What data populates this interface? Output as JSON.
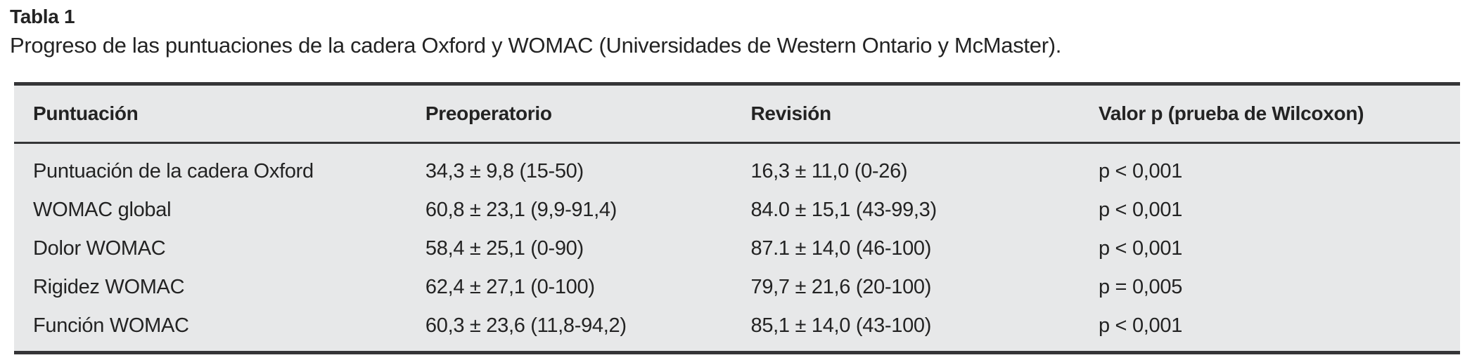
{
  "caption": {
    "label": "Tabla 1",
    "description": "Progreso de las puntuaciones de la cadera Oxford y WOMAC (Universidades de Western Ontario y McMaster)."
  },
  "table": {
    "headers": [
      "Puntuación",
      "Preoperatorio",
      "Revisión",
      "Valor p (prueba de Wilcoxon)"
    ],
    "rows": [
      [
        "Puntuación de la cadera Oxford",
        "34,3 ± 9,8 (15-50)",
        "16,3 ± 11,0 (0-26)",
        "p < 0,001"
      ],
      [
        "WOMAC global",
        "60,8 ± 23,1 (9,9-91,4)",
        "84.0 ± 15,1 (43-99,3)",
        "p < 0,001"
      ],
      [
        "Dolor WOMAC",
        "58,4 ± 25,1 (0-90)",
        "87.1 ± 14,0 (46-100)",
        "p < 0,001"
      ],
      [
        "Rigidez WOMAC",
        "62,4 ± 27,1 (0-100)",
        "79,7 ± 21,6 (20-100)",
        "p = 0,005"
      ],
      [
        "Función WOMAC",
        "60,3 ± 23,6 (11,8-94,2)",
        "85,1 ± 14,0 (43-100)",
        "p < 0,001"
      ]
    ]
  },
  "colors": {
    "table_background": "#e7e8e9",
    "border": "#353537",
    "text": "#232323"
  }
}
